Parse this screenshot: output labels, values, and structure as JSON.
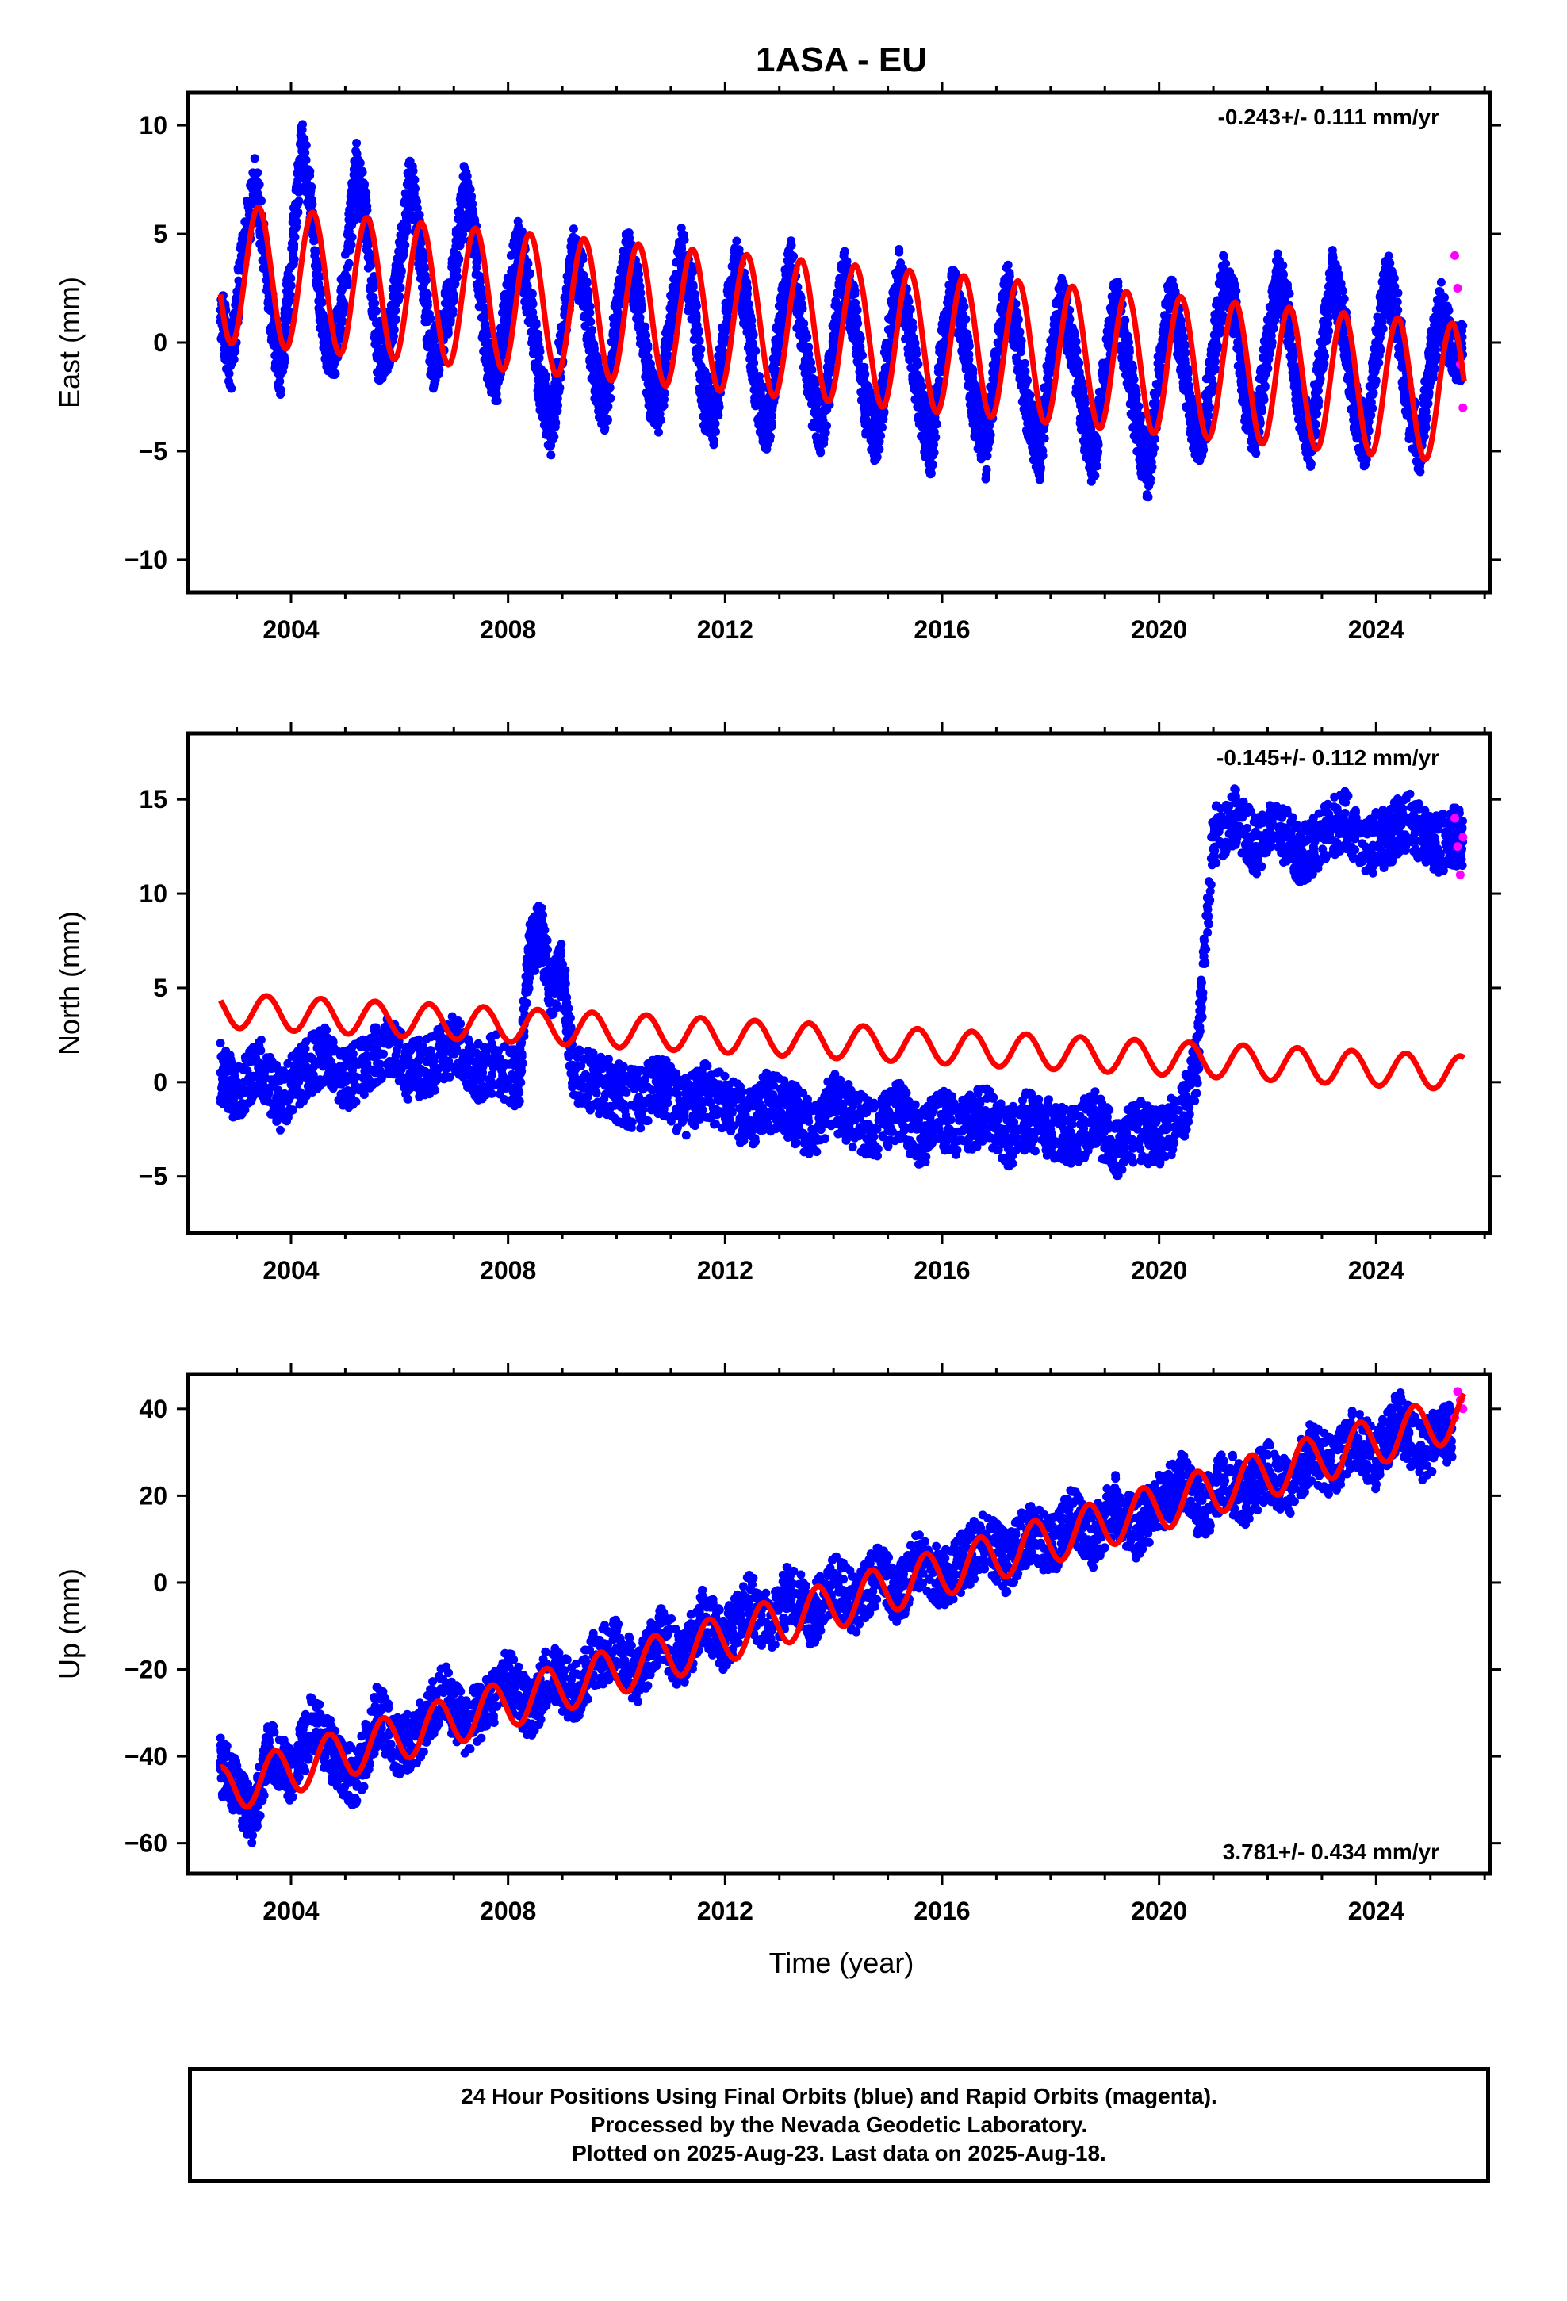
{
  "title": "1ASA - EU",
  "xlabel": "Time (year)",
  "footer": {
    "line1": "24 Hour Positions Using Final Orbits (blue) and Rapid Orbits (magenta).",
    "line2": "Processed by the Nevada Geodetic Laboratory.",
    "line3": "Plotted on 2025-Aug-23. Last data on 2025-Aug-18."
  },
  "colors": {
    "final_orbits": "#0000ff",
    "rapid_orbits": "#ff00ff",
    "model_fit": "#ff0000"
  },
  "chart_data": [
    {
      "type": "scatter",
      "ylabel": "East (mm)",
      "rate_text": "-0.243+/- 0.111 mm/yr",
      "rate_position": "top-right",
      "xlim": [
        2002.1,
        2026.1
      ],
      "ylim": [
        -11.5,
        11.5
      ],
      "xticks": [
        2004,
        2008,
        2012,
        2016,
        2020,
        2024
      ],
      "yticks": [
        -10,
        -5,
        0,
        5,
        10
      ],
      "series": [
        {
          "role": "final_orbits_daily",
          "x": [
            2002.7,
            2002.9,
            2003.1,
            2003.35,
            2003.6,
            2003.8,
            2004.0,
            2004.2,
            2004.4,
            2004.6,
            2004.8,
            2005.0,
            2005.2,
            2005.4,
            2005.6,
            2005.8,
            2006.0,
            2006.2,
            2006.4,
            2006.6,
            2006.8,
            2007.0,
            2007.2,
            2007.4,
            2007.6,
            2007.8,
            2008.0,
            2008.2,
            2008.4,
            2008.6,
            2008.8,
            2009.0,
            2009.2,
            2009.4,
            2009.6,
            2009.8,
            2010.0,
            2010.2,
            2010.4,
            2010.6,
            2010.8,
            2011.0,
            2011.2,
            2011.4,
            2011.6,
            2011.8,
            2012.0,
            2012.2,
            2012.4,
            2012.6,
            2012.8,
            2013.0,
            2013.2,
            2013.4,
            2013.6,
            2013.8,
            2014.0,
            2014.2,
            2014.4,
            2014.6,
            2014.8,
            2015.0,
            2015.2,
            2015.4,
            2015.6,
            2015.8,
            2016.0,
            2016.2,
            2016.4,
            2016.6,
            2016.8,
            2017.0,
            2017.2,
            2017.4,
            2017.6,
            2017.8,
            2018.0,
            2018.2,
            2018.4,
            2018.6,
            2018.8,
            2019.0,
            2019.2,
            2019.4,
            2019.6,
            2019.8,
            2020.0,
            2020.2,
            2020.4,
            2020.6,
            2020.8,
            2021.0,
            2021.2,
            2021.4,
            2021.6,
            2021.8,
            2022.0,
            2022.2,
            2022.4,
            2022.6,
            2022.8,
            2023.0,
            2023.2,
            2023.4,
            2023.6,
            2023.8,
            2024.0,
            2024.2,
            2024.4,
            2024.6,
            2024.8,
            2025.0,
            2025.2,
            2025.4
          ],
          "y": [
            1.5,
            -1.0,
            4.0,
            7.5,
            2.0,
            -1.5,
            3.5,
            9.0,
            6.0,
            0.0,
            -0.5,
            3.0,
            8.0,
            5.5,
            -0.5,
            0.0,
            3.5,
            7.5,
            4.0,
            -1.0,
            0.5,
            3.0,
            7.0,
            4.5,
            -0.5,
            -1.5,
            2.0,
            4.5,
            2.0,
            -2.0,
            -4.0,
            0.0,
            4.0,
            2.5,
            -1.5,
            -3.0,
            1.0,
            4.0,
            2.0,
            -2.0,
            -3.0,
            1.0,
            4.0,
            2.0,
            -2.5,
            -3.5,
            0.5,
            3.5,
            1.5,
            -2.5,
            -4.0,
            0.5,
            3.5,
            1.0,
            -2.5,
            -4.0,
            0.0,
            3.0,
            1.0,
            -3.0,
            -4.5,
            -0.5,
            3.0,
            0.5,
            -3.0,
            -5.0,
            -0.5,
            2.5,
            0.5,
            -3.0,
            -5.0,
            -1.0,
            2.5,
            0.0,
            -3.5,
            -5.0,
            -1.0,
            2.0,
            0.0,
            -3.5,
            -5.5,
            -1.5,
            2.0,
            -0.5,
            -4.0,
            -6.0,
            -1.5,
            2.0,
            0.0,
            -3.5,
            -4.5,
            -0.5,
            3.0,
            1.5,
            -3.0,
            -4.0,
            0.0,
            3.0,
            1.0,
            -3.0,
            -4.5,
            -0.5,
            3.0,
            1.0,
            -3.0,
            -4.5,
            -0.5,
            3.0,
            1.0,
            -3.0,
            -5.0,
            -1.0,
            1.5,
            -0.5
          ]
        },
        {
          "role": "rapid_orbits_daily",
          "x": [
            2025.45,
            2025.5,
            2025.55,
            2025.6
          ],
          "y": [
            4.0,
            2.5,
            -1.0,
            -3.0
          ]
        },
        {
          "role": "model_fit",
          "x_start": 2002.7,
          "x_end": 2025.62,
          "intercept": 3.2,
          "trend_mm_per_yr": -0.243,
          "annual_amplitude": 3.2,
          "phase_peak_year_fraction": 0.4
        }
      ]
    },
    {
      "type": "scatter",
      "ylabel": "North (mm)",
      "rate_text": "-0.145+/- 0.112 mm/yr",
      "rate_position": "top-right",
      "xlim": [
        2002.1,
        2026.1
      ],
      "ylim": [
        -8,
        18.5
      ],
      "xticks": [
        2004,
        2008,
        2012,
        2016,
        2020,
        2024
      ],
      "yticks": [
        -5,
        0,
        5,
        10,
        15
      ],
      "series": [
        {
          "role": "final_orbits_daily",
          "x": [
            2002.7,
            2003.0,
            2003.4,
            2003.8,
            2004.2,
            2004.6,
            2005.0,
            2005.4,
            2005.8,
            2006.2,
            2006.6,
            2007.0,
            2007.4,
            2007.8,
            2008.2,
            2008.4,
            2008.6,
            2008.8,
            2009.0,
            2009.2,
            2009.6,
            2010.0,
            2010.4,
            2010.8,
            2011.2,
            2011.6,
            2012.0,
            2012.4,
            2012.8,
            2013.2,
            2013.6,
            2014.0,
            2014.4,
            2014.8,
            2015.2,
            2015.6,
            2016.0,
            2016.4,
            2016.8,
            2017.2,
            2017.6,
            2018.0,
            2018.4,
            2018.8,
            2019.2,
            2019.6,
            2020.0,
            2020.4,
            2020.7,
            2021.0,
            2021.4,
            2021.8,
            2022.2,
            2022.6,
            2023.0,
            2023.4,
            2023.8,
            2024.2,
            2024.6,
            2025.0,
            2025.4
          ],
          "y": [
            0.5,
            -0.5,
            1.0,
            -1.0,
            0.5,
            1.5,
            0.0,
            1.0,
            2.0,
            0.5,
            1.0,
            2.0,
            0.5,
            1.0,
            0.0,
            7.0,
            8.0,
            5.0,
            6.0,
            0.5,
            0.0,
            -0.5,
            -1.0,
            0.0,
            -1.5,
            -0.5,
            -1.0,
            -2.0,
            -1.0,
            -1.5,
            -2.5,
            -1.0,
            -2.0,
            -2.5,
            -1.5,
            -3.0,
            -2.0,
            -2.5,
            -1.5,
            -3.0,
            -2.0,
            -2.5,
            -3.0,
            -2.0,
            -3.5,
            -2.5,
            -3.0,
            -2.0,
            1.0,
            13.0,
            14.0,
            12.5,
            13.5,
            12.0,
            13.0,
            14.0,
            12.5,
            13.0,
            14.0,
            12.5,
            13.0
          ]
        },
        {
          "role": "rapid_orbits_daily",
          "x": [
            2025.45,
            2025.5,
            2025.55,
            2025.6
          ],
          "y": [
            14.0,
            12.5,
            11.0,
            13.0
          ]
        },
        {
          "role": "model_fit",
          "x_start": 2002.7,
          "x_end": 2025.62,
          "intercept": 3.8,
          "trend_mm_per_yr": -0.145,
          "annual_amplitude": 0.9,
          "phase_peak_year_fraction": 0.55
        }
      ]
    },
    {
      "type": "scatter",
      "ylabel": "Up (mm)",
      "rate_text": "3.781+/- 0.434 mm/yr",
      "rate_position": "bottom-right",
      "xlim": [
        2002.1,
        2026.1
      ],
      "ylim": [
        -67,
        48
      ],
      "xticks": [
        2004,
        2008,
        2012,
        2016,
        2020,
        2024
      ],
      "yticks": [
        -60,
        -40,
        -20,
        0,
        20,
        40
      ],
      "series": [
        {
          "role": "final_orbits_daily",
          "x": [
            2002.7,
            2003.0,
            2003.3,
            2003.6,
            2004.0,
            2004.4,
            2004.8,
            2005.2,
            2005.6,
            2006.0,
            2006.4,
            2006.8,
            2007.2,
            2007.6,
            2008.0,
            2008.4,
            2008.8,
            2009.2,
            2009.6,
            2010.0,
            2010.4,
            2010.8,
            2011.2,
            2011.6,
            2012.0,
            2012.4,
            2012.8,
            2013.2,
            2013.6,
            2014.0,
            2014.4,
            2014.8,
            2015.2,
            2015.6,
            2016.0,
            2016.4,
            2016.8,
            2017.2,
            2017.6,
            2018.0,
            2018.4,
            2018.8,
            2019.2,
            2019.6,
            2020.0,
            2020.4,
            2020.8,
            2021.2,
            2021.6,
            2022.0,
            2022.4,
            2022.8,
            2023.2,
            2023.6,
            2024.0,
            2024.4,
            2024.8,
            2025.2
          ],
          "y": [
            -42,
            -48,
            -55,
            -38,
            -45,
            -32,
            -40,
            -46,
            -30,
            -38,
            -34,
            -25,
            -33,
            -28,
            -22,
            -30,
            -20,
            -26,
            -18,
            -15,
            -22,
            -12,
            -18,
            -8,
            -14,
            -4,
            -10,
            -2,
            -8,
            0,
            -5,
            2,
            -3,
            6,
            0,
            5,
            10,
            4,
            12,
            8,
            15,
            10,
            18,
            12,
            18,
            24,
            16,
            24,
            20,
            26,
            22,
            30,
            26,
            34,
            28,
            38,
            30,
            34
          ]
        },
        {
          "role": "rapid_orbits_daily",
          "x": [
            2025.45,
            2025.5,
            2025.55,
            2025.6
          ],
          "y": [
            38,
            44,
            42,
            40
          ]
        },
        {
          "role": "model_fit",
          "x_start": 2002.7,
          "x_end": 2025.62,
          "intercept": -48,
          "trend_mm_per_yr": 3.781,
          "annual_amplitude": 5.5,
          "phase_peak_year_fraction": 0.7
        }
      ]
    }
  ]
}
